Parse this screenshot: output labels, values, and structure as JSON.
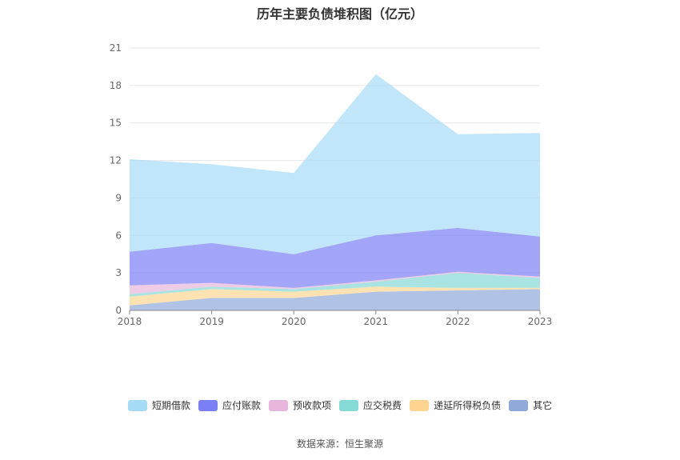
{
  "chart_data": {
    "type": "area",
    "stacked": true,
    "title": "历年主要负债堆积图（亿元）",
    "x": [
      "2018",
      "2019",
      "2020",
      "2021",
      "2022",
      "2023"
    ],
    "ylim": [
      0,
      21
    ],
    "yticks": [
      "0",
      "3",
      "6",
      "9",
      "12",
      "15",
      "18",
      "21"
    ],
    "grid": true,
    "legend_position": "bottom",
    "series": [
      {
        "name": "其它",
        "color": "#8fa9d9",
        "values": [
          0.4,
          1.0,
          1.0,
          1.5,
          1.6,
          1.7
        ]
      },
      {
        "name": "递延所得税负债",
        "color": "#ffd591",
        "values": [
          0.7,
          0.7,
          0.5,
          0.4,
          0.2,
          0.1
        ]
      },
      {
        "name": "应交税费",
        "color": "#85d9d6",
        "values": [
          0.2,
          0.2,
          0.2,
          0.4,
          1.2,
          0.8
        ]
      },
      {
        "name": "预收款项",
        "color": "#e8b6dc",
        "values": [
          0.7,
          0.3,
          0.1,
          0.1,
          0.1,
          0.1
        ]
      },
      {
        "name": "应付账款",
        "color": "#7b7ff5",
        "values": [
          2.7,
          3.2,
          2.7,
          3.6,
          3.5,
          3.2
        ]
      },
      {
        "name": "短期借款",
        "color": "#a7dcf7",
        "values": [
          7.4,
          6.3,
          6.5,
          12.9,
          7.5,
          8.3
        ]
      }
    ]
  },
  "legend_order": [
    "短期借款",
    "应付账款",
    "预收款项",
    "应交税费",
    "递延所得税负债",
    "其它"
  ],
  "source": "数据来源：恒生聚源"
}
